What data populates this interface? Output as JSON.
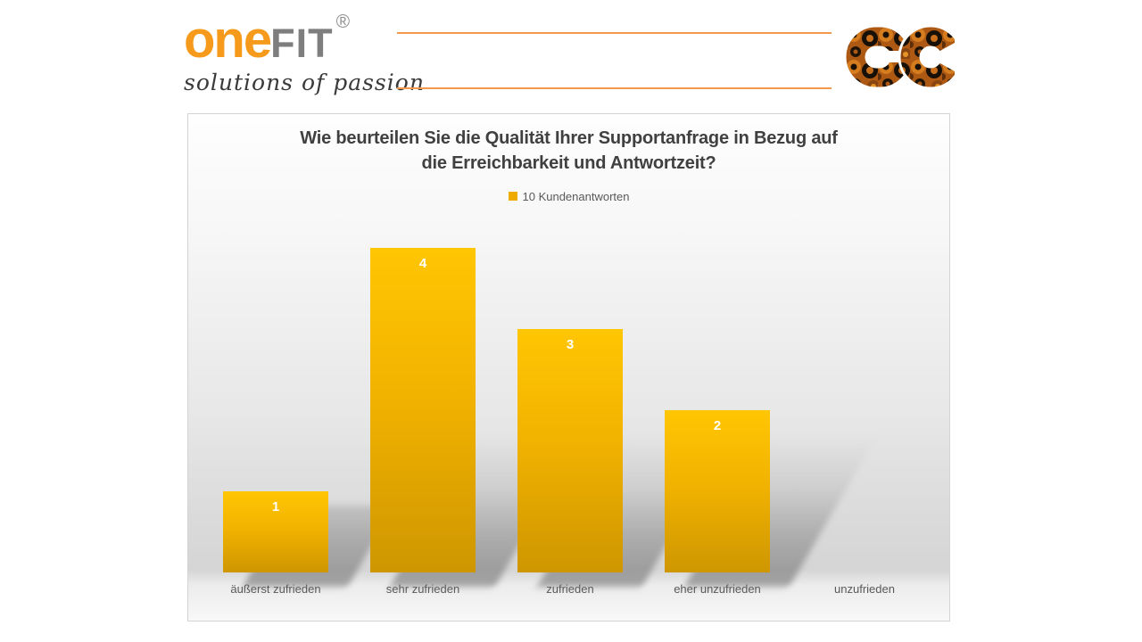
{
  "header": {
    "logo": {
      "part_one": "one",
      "part_fit": "FIT",
      "registered_mark": "®",
      "tagline": "solutions of passion"
    },
    "colors": {
      "logo_orange": "#F59A1B",
      "logo_gray": "#7E7E7E",
      "rule_orange": "#F2994A"
    }
  },
  "chart_data": {
    "type": "bar",
    "title": "Wie beurteilen Sie die Qualität Ihrer Supportanfrage in Bezug auf\ndie Erreichbarkeit und Antwortzeit?",
    "legend": [
      {
        "label": "10 Kundenantworten",
        "color": "#F0AB00"
      }
    ],
    "legend_position": "top-center",
    "categories": [
      "äußerst zufrieden",
      "sehr zufrieden",
      "zufrieden",
      "eher unzufrieden",
      "unzufrieden"
    ],
    "series": [
      {
        "name": "10 Kundenantworten",
        "values": [
          1,
          4,
          3,
          2,
          0
        ]
      }
    ],
    "values": [
      1,
      4,
      3,
      2,
      0
    ],
    "ylim": [
      0,
      4
    ],
    "grid": false,
    "axis_visible": false,
    "bar_color_top": "#FFC603",
    "bar_color_mid": "#F2B300",
    "bar_color_bottom": "#CE9601",
    "value_label_color": "#FFFFFF",
    "category_label_color": "#595959",
    "title_color": "#404040"
  }
}
